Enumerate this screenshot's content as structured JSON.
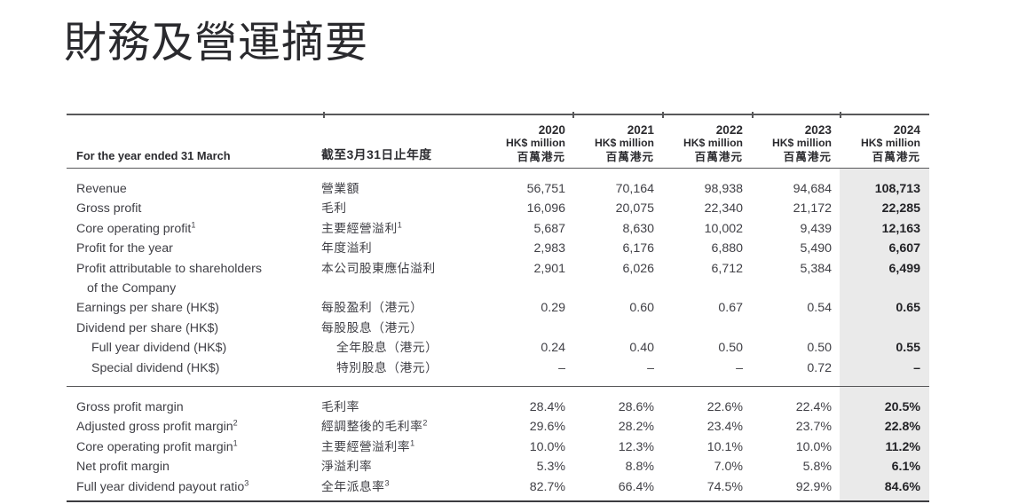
{
  "title": "財務及營運摘要",
  "table": {
    "header": {
      "label_en": "For the year ended 31 March",
      "label_zh": "截至3月31日止年度",
      "year_columns": [
        {
          "year": "2020",
          "unit_en": "HK$ million",
          "unit_zh": "百萬港元"
        },
        {
          "year": "2021",
          "unit_en": "HK$ million",
          "unit_zh": "百萬港元"
        },
        {
          "year": "2022",
          "unit_en": "HK$ million",
          "unit_zh": "百萬港元"
        },
        {
          "year": "2023",
          "unit_en": "HK$ million",
          "unit_zh": "百萬港元"
        },
        {
          "year": "2024",
          "unit_en": "HK$ million",
          "unit_zh": "百萬港元"
        }
      ]
    },
    "sections": [
      {
        "rows": [
          {
            "en": "Revenue",
            "zh": "營業額",
            "values": [
              "56,751",
              "70,164",
              "98,938",
              "94,684",
              "108,713"
            ]
          },
          {
            "en": "Gross profit",
            "zh": "毛利",
            "values": [
              "16,096",
              "20,075",
              "22,340",
              "21,172",
              "22,285"
            ]
          },
          {
            "en": "Core operating profit",
            "en_sup": "1",
            "zh": "主要經營溢利",
            "zh_sup": "1",
            "values": [
              "5,687",
              "8,630",
              "10,002",
              "9,439",
              "12,163"
            ]
          },
          {
            "en": "Profit for the year",
            "zh": "年度溢利",
            "values": [
              "2,983",
              "6,176",
              "6,880",
              "5,490",
              "6,607"
            ]
          },
          {
            "en": "Profit attributable to shareholders",
            "en_line2": "of the Company",
            "zh": "本公司股東應佔溢利",
            "values": [
              "2,901",
              "6,026",
              "6,712",
              "5,384",
              "6,499"
            ]
          },
          {
            "en": "Earnings per share (HK$)",
            "zh": "每股盈利（港元）",
            "values": [
              "0.29",
              "0.60",
              "0.67",
              "0.54",
              "0.65"
            ]
          },
          {
            "en": "Dividend per share (HK$)",
            "zh": "每股股息（港元）",
            "values": [
              "",
              "",
              "",
              "",
              ""
            ]
          },
          {
            "en": "Full year dividend (HK$)",
            "zh": "全年股息（港元）",
            "indent": true,
            "values": [
              "0.24",
              "0.40",
              "0.50",
              "0.50",
              "0.55"
            ]
          },
          {
            "en": "Special dividend (HK$)",
            "zh": "特別股息（港元）",
            "indent": true,
            "values": [
              "–",
              "–",
              "–",
              "0.72",
              "–"
            ]
          }
        ]
      },
      {
        "rows": [
          {
            "en": "Gross profit margin",
            "zh": "毛利率",
            "values": [
              "28.4%",
              "28.6%",
              "22.6%",
              "22.4%",
              "20.5%"
            ]
          },
          {
            "en": "Adjusted gross profit margin",
            "en_sup": "2",
            "zh": "經調整後的毛利率",
            "zh_sup": "2",
            "values": [
              "29.6%",
              "28.2%",
              "23.4%",
              "23.7%",
              "22.8%"
            ]
          },
          {
            "en": "Core operating profit margin",
            "en_sup": "1",
            "zh": "主要經營溢利率",
            "zh_sup": "1",
            "values": [
              "10.0%",
              "12.3%",
              "10.1%",
              "10.0%",
              "11.2%"
            ]
          },
          {
            "en": "Net profit margin",
            "zh": "淨溢利率",
            "values": [
              "5.3%",
              "8.8%",
              "7.0%",
              "5.8%",
              "6.1%"
            ]
          },
          {
            "en": "Full year dividend payout ratio",
            "en_sup": "3",
            "zh": "全年派息率",
            "zh_sup": "3",
            "values": [
              "82.7%",
              "66.4%",
              "74.5%",
              "92.9%",
              "84.6%"
            ]
          }
        ]
      }
    ]
  },
  "colors": {
    "highlight_bg": "#eaeaea",
    "text": "#404046",
    "text_bold": "#232327",
    "rule": "#58585a"
  }
}
